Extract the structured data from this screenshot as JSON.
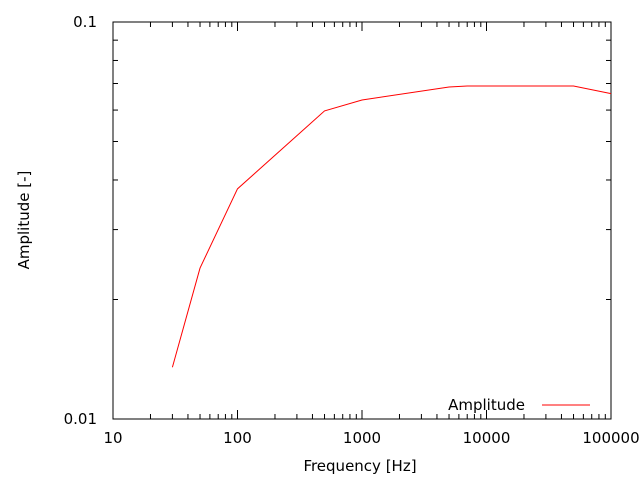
{
  "chart_data": {
    "type": "line",
    "title": "",
    "xlabel": "Frequency [Hz]",
    "ylabel": "Amplitude [-]",
    "xscale": "log",
    "yscale": "log",
    "xlim": [
      10,
      100000
    ],
    "ylim": [
      0.01,
      0.1
    ],
    "x_tick_labels": [
      "10",
      "100",
      "1000",
      "10000",
      "100000"
    ],
    "y_tick_labels": [
      "0.01",
      "0.1"
    ],
    "grid": false,
    "legend_position": "bottom-right",
    "series": [
      {
        "name": "Amplitude",
        "color": "#ff0000",
        "x": [
          30,
          50,
          100,
          500,
          1000,
          5000,
          7000,
          50000,
          100000
        ],
        "y": [
          0.0135,
          0.024,
          0.038,
          0.0597,
          0.0636,
          0.0686,
          0.069,
          0.069,
          0.066
        ]
      }
    ]
  }
}
